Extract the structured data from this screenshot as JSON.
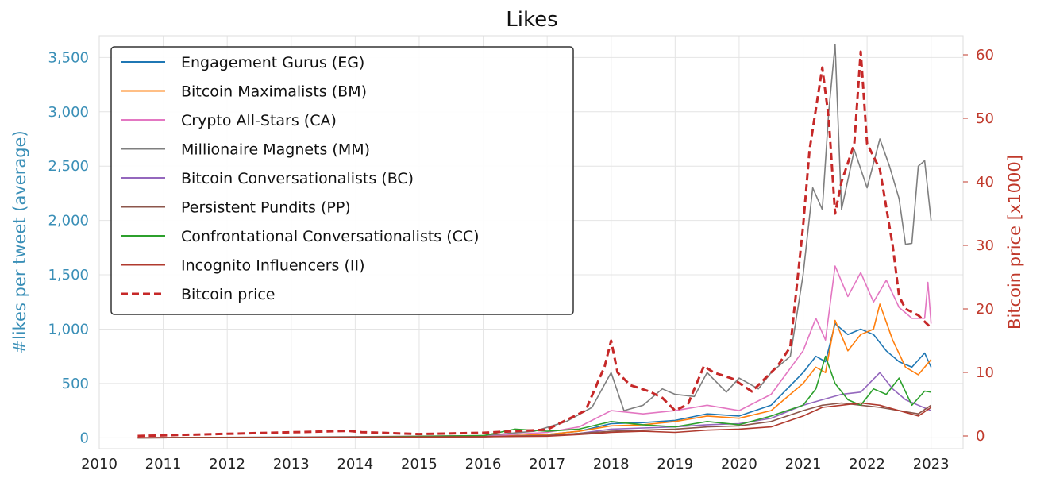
{
  "chart_data": {
    "type": "line",
    "title": "Likes",
    "xlabel": "",
    "ylabel_left": "#likes per tweet (average)",
    "ylabel_right": "Bitcoin price [x1000]",
    "x_ticks": [
      "2010",
      "2011",
      "2012",
      "2013",
      "2014",
      "2015",
      "2016",
      "2017",
      "2018",
      "2019",
      "2020",
      "2021",
      "2022",
      "2023"
    ],
    "y_left_ticks": [
      "0",
      "500",
      "1,000",
      "1,500",
      "2,000",
      "2,500",
      "3,000",
      "3,500"
    ],
    "y_right_ticks": [
      "0",
      "10",
      "20",
      "30",
      "40",
      "50",
      "60"
    ],
    "xlim": [
      2010,
      2023.5
    ],
    "ylim_left": [
      -100,
      3700
    ],
    "ylim_right": [
      -2,
      63
    ],
    "grid": true,
    "legend_position": "top-left",
    "colors": {
      "left_axis": "#3a8fb7",
      "right_axis": "#c0392b"
    },
    "series": [
      {
        "name": "Engagement Gurus (EG)",
        "axis": "left",
        "color": "#1f77b4",
        "dash": false,
        "x": [
          2010.6,
          2014.0,
          2016.0,
          2017.0,
          2017.5,
          2018.0,
          2018.5,
          2019.0,
          2019.5,
          2020.0,
          2020.5,
          2021.0,
          2021.2,
          2021.35,
          2021.5,
          2021.7,
          2021.9,
          2022.1,
          2022.3,
          2022.5,
          2022.7,
          2022.9,
          2023.0
        ],
        "y": [
          0,
          5,
          10,
          30,
          60,
          130,
          140,
          160,
          220,
          200,
          300,
          600,
          750,
          700,
          1050,
          950,
          1000,
          950,
          800,
          700,
          650,
          780,
          650
        ]
      },
      {
        "name": "Bitcoin Maximalists (BM)",
        "axis": "left",
        "color": "#ff7f0e",
        "dash": false,
        "x": [
          2010.6,
          2014.0,
          2016.0,
          2017.0,
          2017.5,
          2018.0,
          2018.5,
          2019.0,
          2019.5,
          2020.0,
          2020.5,
          2021.0,
          2021.2,
          2021.35,
          2021.5,
          2021.7,
          2021.9,
          2022.1,
          2022.2,
          2022.4,
          2022.6,
          2022.8,
          2023.0
        ],
        "y": [
          0,
          5,
          10,
          30,
          60,
          110,
          120,
          150,
          200,
          180,
          250,
          500,
          650,
          600,
          1080,
          800,
          950,
          1000,
          1230,
          900,
          650,
          580,
          720
        ]
      },
      {
        "name": "Crypto All-Stars (CA)",
        "axis": "left",
        "color": "#e377c2",
        "dash": false,
        "x": [
          2010.6,
          2014.0,
          2016.0,
          2017.0,
          2017.5,
          2018.0,
          2018.5,
          2019.0,
          2019.5,
          2020.0,
          2020.5,
          2021.0,
          2021.2,
          2021.35,
          2021.5,
          2021.7,
          2021.9,
          2022.1,
          2022.3,
          2022.5,
          2022.7,
          2022.9,
          2022.95,
          2023.0
        ],
        "y": [
          0,
          5,
          15,
          50,
          100,
          250,
          220,
          250,
          300,
          250,
          400,
          800,
          1100,
          900,
          1580,
          1300,
          1520,
          1250,
          1450,
          1200,
          1100,
          1100,
          1430,
          1050
        ]
      },
      {
        "name": "Millionaire Magnets (MM)",
        "axis": "left",
        "color": "#7f7f7f",
        "dash": false,
        "x": [
          2010.6,
          2014.0,
          2016.0,
          2016.8,
          2017.3,
          2017.7,
          2018.0,
          2018.2,
          2018.5,
          2018.8,
          2019.0,
          2019.3,
          2019.5,
          2019.8,
          2020.0,
          2020.3,
          2020.5,
          2020.8,
          2021.0,
          2021.15,
          2021.3,
          2021.4,
          2021.5,
          2021.6,
          2021.8,
          2022.0,
          2022.2,
          2022.35,
          2022.5,
          2022.6,
          2022.7,
          2022.8,
          2022.9,
          2023.0
        ],
        "y": [
          0,
          10,
          20,
          60,
          150,
          280,
          600,
          250,
          300,
          450,
          400,
          380,
          600,
          420,
          550,
          450,
          600,
          750,
          1500,
          2300,
          2100,
          3000,
          3620,
          2100,
          2650,
          2300,
          2750,
          2500,
          2200,
          1780,
          1790,
          2500,
          2550,
          2000
        ]
      },
      {
        "name": "Bitcoin Conversationalists (BC)",
        "axis": "left",
        "color": "#9467bd",
        "dash": false,
        "x": [
          2010.6,
          2014.0,
          2016.0,
          2017.0,
          2017.5,
          2018.0,
          2018.5,
          2019.0,
          2019.5,
          2020.0,
          2020.5,
          2021.0,
          2021.3,
          2021.6,
          2021.9,
          2022.2,
          2022.4,
          2022.6,
          2022.8,
          2023.0
        ],
        "y": [
          0,
          5,
          10,
          20,
          40,
          80,
          90,
          100,
          120,
          130,
          180,
          300,
          350,
          400,
          420,
          600,
          450,
          350,
          300,
          250
        ]
      },
      {
        "name": "Persistent Pundits (PP)",
        "axis": "left",
        "color": "#8c564b",
        "dash": false,
        "x": [
          2010.6,
          2014.0,
          2016.0,
          2017.0,
          2017.5,
          2018.0,
          2018.5,
          2019.0,
          2019.5,
          2020.0,
          2020.5,
          2021.0,
          2021.3,
          2021.6,
          2021.9,
          2022.2,
          2022.5,
          2022.8,
          2023.0
        ],
        "y": [
          0,
          5,
          10,
          20,
          40,
          60,
          70,
          80,
          100,
          110,
          150,
          250,
          300,
          320,
          300,
          280,
          250,
          220,
          300
        ]
      },
      {
        "name": "Confrontational Conversationalists (CC)",
        "axis": "left",
        "color": "#2ca02c",
        "dash": false,
        "x": [
          2010.6,
          2014.0,
          2016.0,
          2016.5,
          2017.0,
          2017.5,
          2018.0,
          2018.5,
          2019.0,
          2019.5,
          2020.0,
          2020.5,
          2021.0,
          2021.2,
          2021.35,
          2021.5,
          2021.7,
          2021.9,
          2022.1,
          2022.3,
          2022.5,
          2022.7,
          2022.9,
          2023.0
        ],
        "y": [
          0,
          5,
          20,
          80,
          60,
          80,
          150,
          120,
          100,
          150,
          120,
          200,
          300,
          450,
          750,
          500,
          350,
          300,
          450,
          400,
          550,
          300,
          430,
          420
        ]
      },
      {
        "name": "Incognito Influencers (II)",
        "axis": "left",
        "color": "#b03a2e",
        "dash": false,
        "x": [
          2010.6,
          2014.0,
          2016.0,
          2017.0,
          2017.5,
          2018.0,
          2018.5,
          2019.0,
          2019.5,
          2020.0,
          2020.5,
          2021.0,
          2021.3,
          2021.6,
          2021.9,
          2022.2,
          2022.5,
          2022.8,
          2023.0
        ],
        "y": [
          0,
          5,
          10,
          15,
          30,
          50,
          60,
          50,
          70,
          80,
          100,
          200,
          280,
          300,
          320,
          300,
          250,
          200,
          280
        ]
      },
      {
        "name": "Bitcoin price",
        "axis": "right",
        "color": "#c62828",
        "dash": true,
        "x": [
          2010.6,
          2013.9,
          2014.1,
          2015.0,
          2016.0,
          2017.0,
          2017.6,
          2017.9,
          2018.0,
          2018.1,
          2018.3,
          2018.6,
          2018.8,
          2019.0,
          2019.2,
          2019.45,
          2019.6,
          2019.9,
          2020.2,
          2020.4,
          2020.6,
          2020.8,
          2021.0,
          2021.1,
          2021.3,
          2021.4,
          2021.5,
          2021.6,
          2021.8,
          2021.9,
          2022.0,
          2022.2,
          2022.4,
          2022.5,
          2022.6,
          2022.8,
          2023.0
        ],
        "y": [
          0,
          0.8,
          0.6,
          0.3,
          0.5,
          1.0,
          4.0,
          11.0,
          15.0,
          10.0,
          8.0,
          7.0,
          6.0,
          4.0,
          5.0,
          11.0,
          10.0,
          9.0,
          7.0,
          9.0,
          11.0,
          14.0,
          33.0,
          45.0,
          58.0,
          50.0,
          35.0,
          40.0,
          46.0,
          60.5,
          46.0,
          42.0,
          30.0,
          22.0,
          20.0,
          19.0,
          17.0
        ]
      }
    ]
  }
}
